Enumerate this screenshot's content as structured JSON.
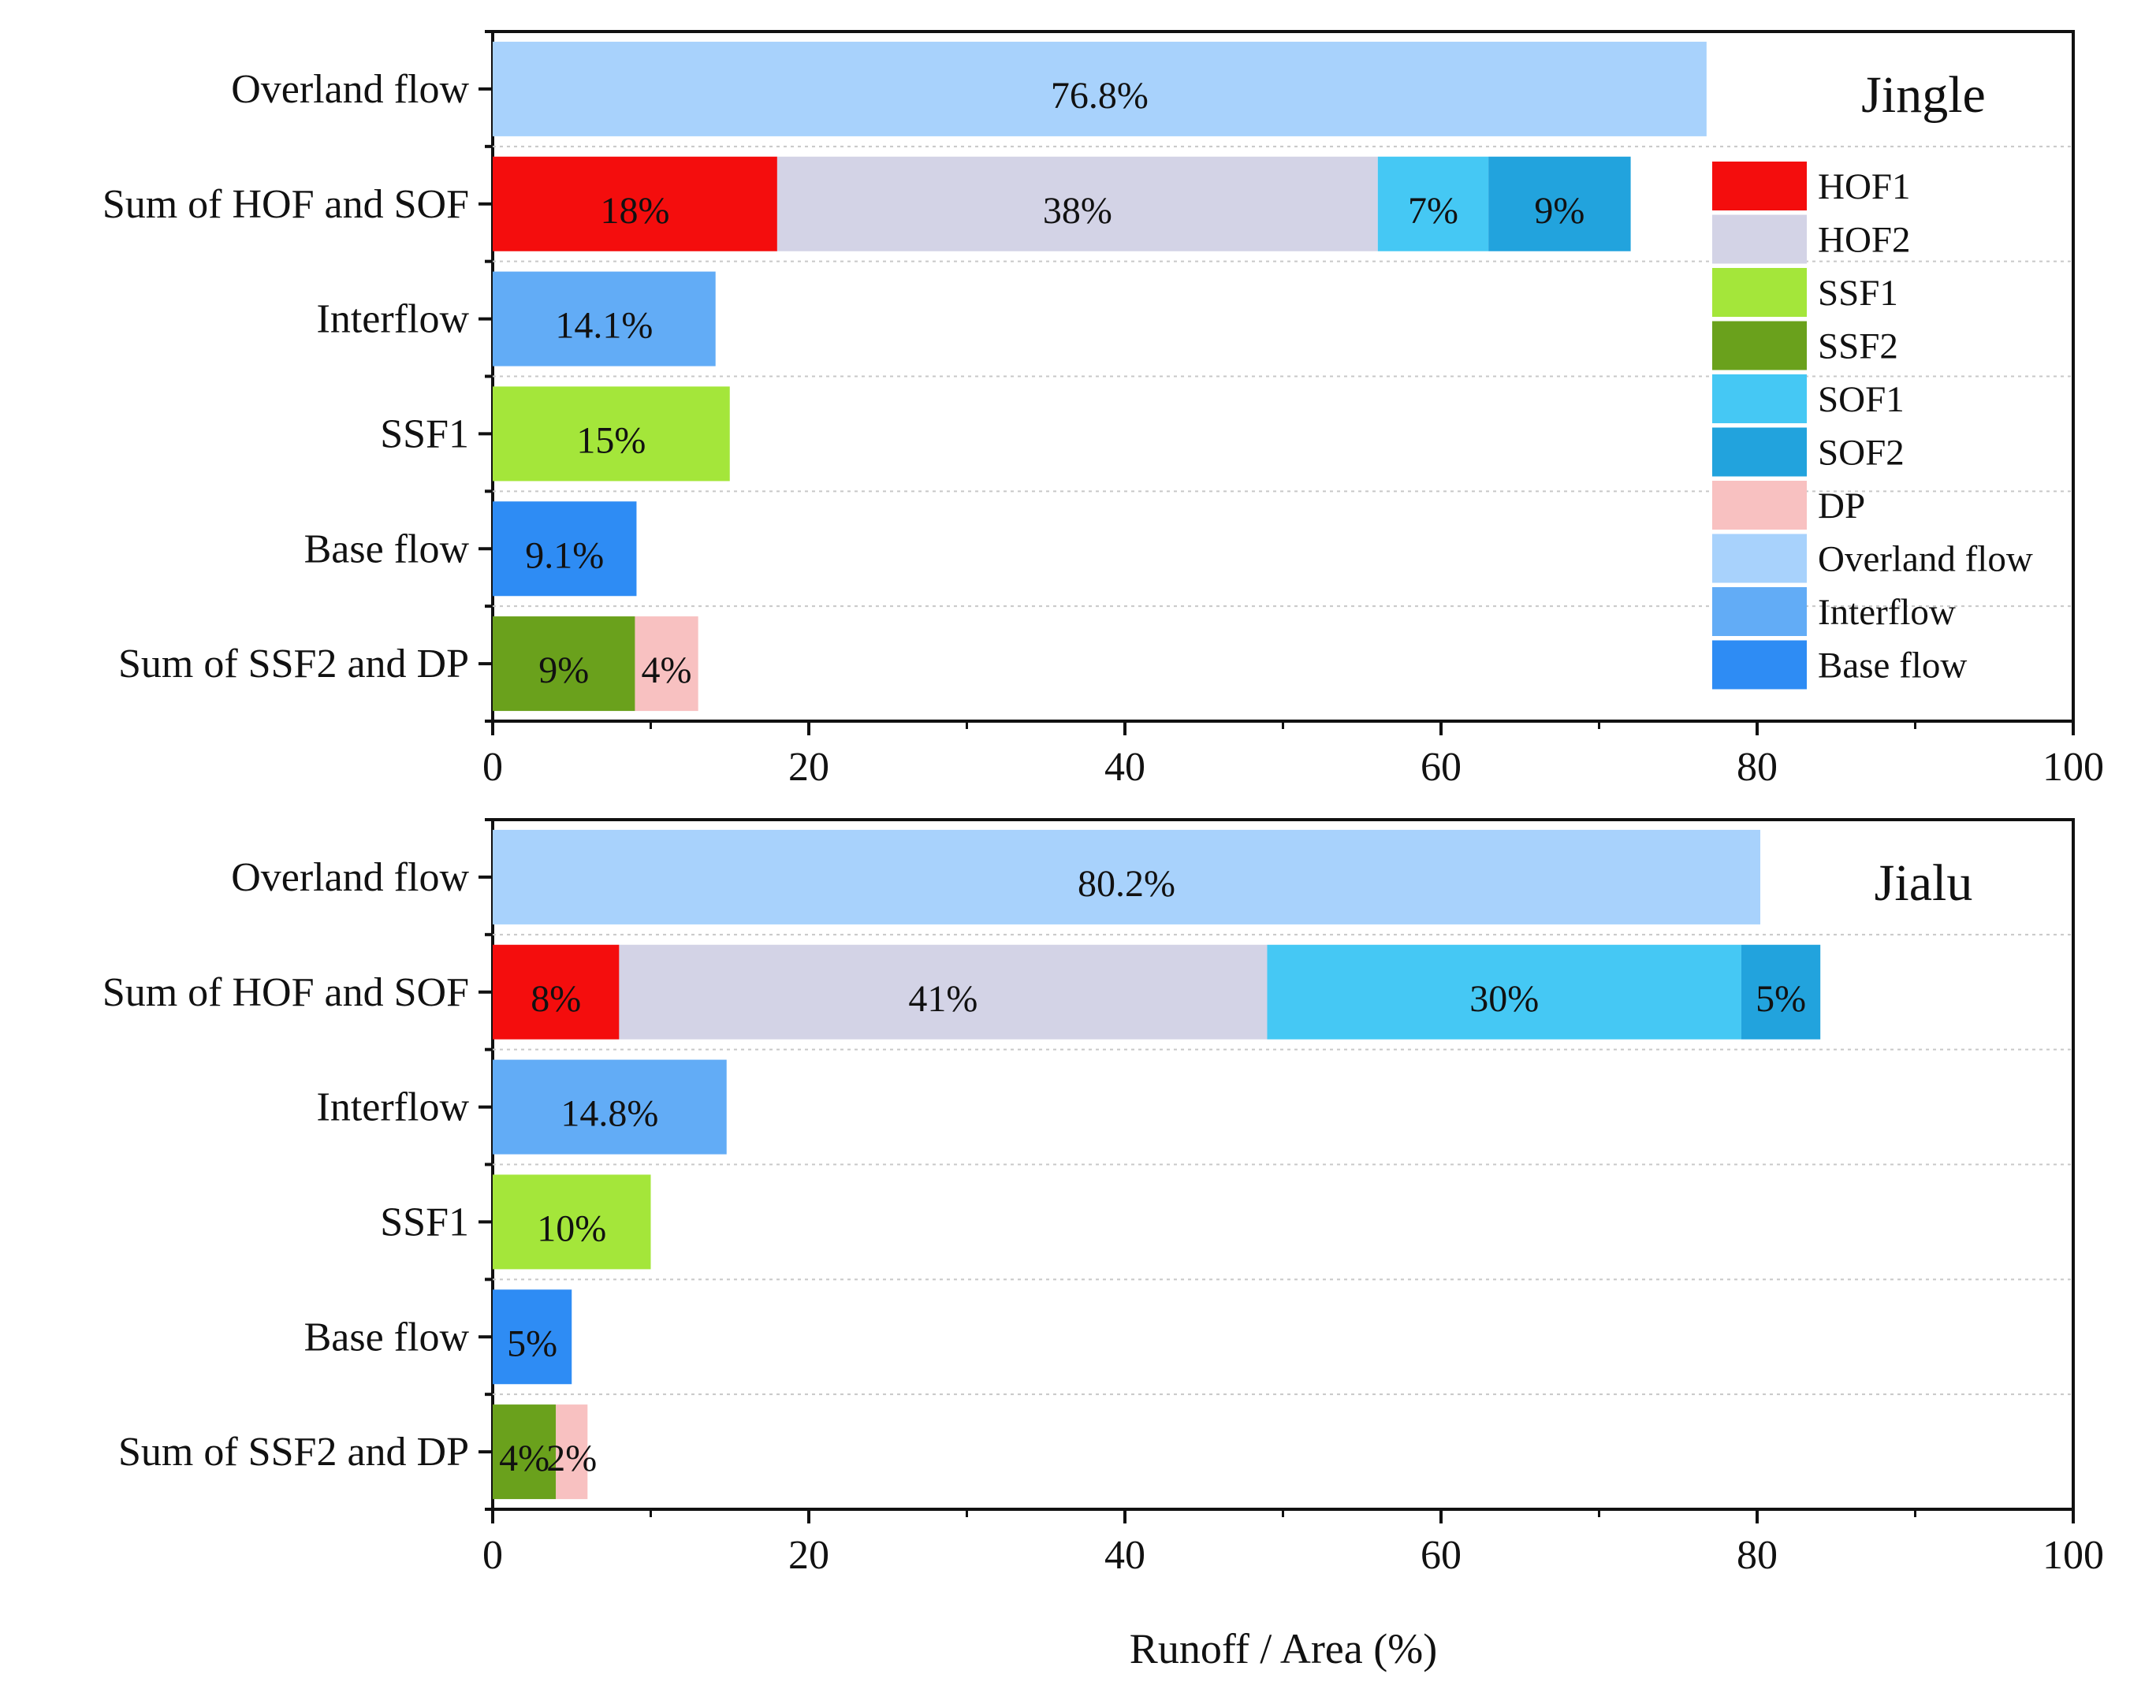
{
  "chart_data": [
    {
      "type": "bar",
      "orientation": "horizontal",
      "stacked": true,
      "title": "Jingle",
      "categories": [
        "Overland flow",
        "Sum of HOF and SOF",
        "Interflow",
        "SSF1",
        "Base flow",
        "Sum of SSF2 and DP"
      ],
      "bars": [
        {
          "category": "Overland flow",
          "segments": [
            {
              "component": "Overland flow",
              "value": 76.8,
              "label": "76.8%"
            }
          ]
        },
        {
          "category": "Sum of HOF and SOF",
          "segments": [
            {
              "component": "HOF1",
              "value": 18,
              "label": "18%"
            },
            {
              "component": "HOF2",
              "value": 38,
              "label": "38%"
            },
            {
              "component": "SOF1",
              "value": 7,
              "label": "7%"
            },
            {
              "component": "SOF2",
              "value": 9,
              "label": "9%"
            }
          ]
        },
        {
          "category": "Interflow",
          "segments": [
            {
              "component": "Interflow",
              "value": 14.1,
              "label": "14.1%"
            }
          ]
        },
        {
          "category": "SSF1",
          "segments": [
            {
              "component": "SSF1",
              "value": 15,
              "label": "15%"
            }
          ]
        },
        {
          "category": "Base flow",
          "segments": [
            {
              "component": "Base flow",
              "value": 9.1,
              "label": "9.1%"
            }
          ]
        },
        {
          "category": "Sum of SSF2 and DP",
          "segments": [
            {
              "component": "SSF2",
              "value": 9,
              "label": "9%"
            },
            {
              "component": "DP",
              "value": 4,
              "label": "4%"
            }
          ]
        }
      ],
      "xlim": [
        0,
        100
      ],
      "xticks": [
        "0",
        "20",
        "40",
        "60",
        "80",
        "100"
      ],
      "legend": {
        "location": "right",
        "entries": [
          "HOF1",
          "HOF2",
          "SSF1",
          "SSF2",
          "SOF1",
          "SOF2",
          "DP",
          "Overland flow",
          "Interflow",
          "Base flow"
        ]
      }
    },
    {
      "type": "bar",
      "orientation": "horizontal",
      "stacked": true,
      "title": "Jialu",
      "categories": [
        "Overland flow",
        "Sum of HOF and SOF",
        "Interflow",
        "SSF1",
        "Base flow",
        "Sum of SSF2 and DP"
      ],
      "bars": [
        {
          "category": "Overland flow",
          "segments": [
            {
              "component": "Overland flow",
              "value": 80.2,
              "label": "80.2%"
            }
          ]
        },
        {
          "category": "Sum of HOF and SOF",
          "segments": [
            {
              "component": "HOF1",
              "value": 8,
              "label": "8%"
            },
            {
              "component": "HOF2",
              "value": 41,
              "label": "41%"
            },
            {
              "component": "SOF1",
              "value": 30,
              "label": "30%"
            },
            {
              "component": "SOF2",
              "value": 5,
              "label": "5%"
            }
          ]
        },
        {
          "category": "Interflow",
          "segments": [
            {
              "component": "Interflow",
              "value": 14.8,
              "label": "14.8%"
            }
          ]
        },
        {
          "category": "SSF1",
          "segments": [
            {
              "component": "SSF1",
              "value": 10,
              "label": "10%"
            }
          ]
        },
        {
          "category": "Base flow",
          "segments": [
            {
              "component": "Base flow",
              "value": 5,
              "label": "5%"
            }
          ]
        },
        {
          "category": "Sum of SSF2 and DP",
          "segments": [
            {
              "component": "SSF2",
              "value": 4,
              "label": "4%"
            },
            {
              "component": "DP",
              "value": 2,
              "label": "2%"
            }
          ]
        }
      ],
      "xlim": [
        0,
        100
      ],
      "xticks": [
        "0",
        "20",
        "40",
        "60",
        "80",
        "100"
      ],
      "xlabel": "Runoff / Area (%)"
    }
  ],
  "colors": {
    "HOF1": "#f40d0d",
    "HOF2": "#d3d3e6",
    "SSF1": "#a4e63a",
    "SSF2": "#6aa11c",
    "SOF1": "#45c8f4",
    "SOF2": "#22a3dd",
    "DP": "#f8c1c1",
    "Overland flow": "#a8d2fc",
    "Interflow": "#62acf6",
    "Base flow": "#2e8cf4"
  }
}
